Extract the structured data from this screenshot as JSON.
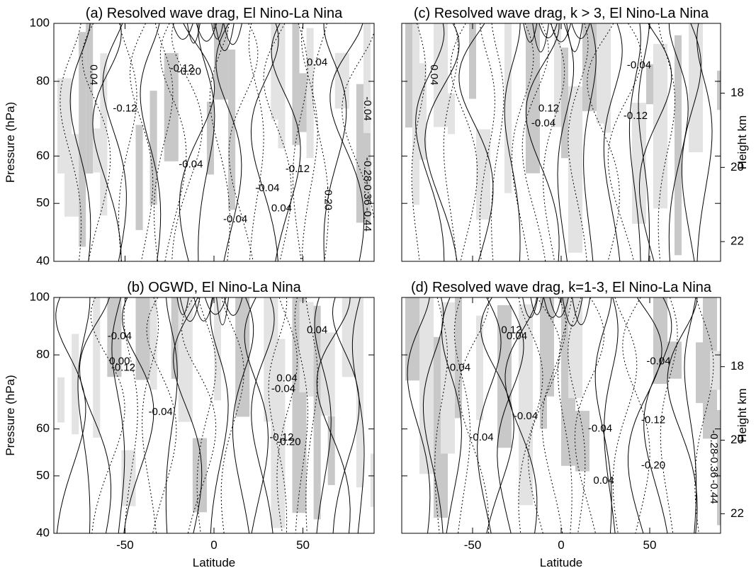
{
  "chart_data": [
    {
      "type": "heatmap",
      "title": "(a) Resolved wave drag, El Nino-La Nina",
      "ylabel": "Pressure (hPa)",
      "xlabel": "",
      "xlim": [
        -90,
        90
      ],
      "ylim": [
        100,
        40
      ],
      "yscale": "log",
      "yticks": [
        40,
        50,
        60,
        80,
        100
      ],
      "xticks": [],
      "contour_labels": [
        {
          "text": "0.04",
          "lat": -68,
          "p": 82
        },
        {
          "text": "-0.12",
          "lat": -50,
          "p": 72
        },
        {
          "text": "-0.04",
          "lat": -13,
          "p": 58
        },
        {
          "text": "-0.20",
          "lat": -14,
          "p": 83
        },
        {
          "text": "-0.12",
          "lat": -18,
          "p": 84
        },
        {
          "text": "-0.04",
          "lat": 12,
          "p": 47
        },
        {
          "text": "-0.04",
          "lat": 30,
          "p": 53
        },
        {
          "text": "0.04",
          "lat": 38,
          "p": 49
        },
        {
          "text": "-0.12",
          "lat": 47,
          "p": 57
        },
        {
          "text": "-0.20",
          "lat": 64,
          "p": 51
        },
        {
          "text": "0.04",
          "lat": 58,
          "p": 86
        },
        {
          "text": "-0.44",
          "lat": 86,
          "p": 47
        },
        {
          "text": "-0.36",
          "lat": 86,
          "p": 52
        },
        {
          "text": "-0.28",
          "lat": 86,
          "p": 57
        },
        {
          "text": "-0.04",
          "lat": 86,
          "p": 72
        }
      ]
    },
    {
      "type": "heatmap",
      "title": "(b) OGWD, El Nino-La Nina",
      "ylabel": "Pressure (hPa)",
      "xlabel": "Latitude",
      "xlim": [
        -90,
        90
      ],
      "ylim": [
        100,
        40
      ],
      "yscale": "log",
      "yticks": [
        40,
        50,
        60,
        80,
        100
      ],
      "xticks": [
        -50,
        0,
        50
      ],
      "contour_labels": [
        {
          "text": "-0.04",
          "lat": -30,
          "p": 64
        },
        {
          "text": "-0.12",
          "lat": 38,
          "p": 58
        },
        {
          "text": "-0.20",
          "lat": 42,
          "p": 57
        },
        {
          "text": "-0.04",
          "lat": 39,
          "p": 70
        },
        {
          "text": "0.04",
          "lat": 41,
          "p": 73
        },
        {
          "text": "-0.12",
          "lat": -51,
          "p": 76
        },
        {
          "text": "0.00",
          "lat": -53,
          "p": 78
        },
        {
          "text": "-0.04",
          "lat": -53,
          "p": 86
        },
        {
          "text": "0.04",
          "lat": 58,
          "p": 88
        }
      ]
    },
    {
      "type": "heatmap",
      "title": "(c) Resolved wave drag, k > 3, El Nino-La Nina",
      "ylabel": "Height km",
      "xlabel": "",
      "xlim": [
        -90,
        90
      ],
      "ylim": [
        100,
        40
      ],
      "yscale": "log",
      "yticks": [
        40,
        50,
        60,
        80,
        100
      ],
      "right_axis_ticks": [
        22,
        20,
        18
      ],
      "xticks": [],
      "contour_labels": [
        {
          "text": "0.04",
          "lat": -72,
          "p": 82
        },
        {
          "text": "-0.04",
          "lat": -10,
          "p": 68
        },
        {
          "text": "0.12",
          "lat": -7,
          "p": 72
        },
        {
          "text": "-0.12",
          "lat": 42,
          "p": 70
        },
        {
          "text": "-0.04",
          "lat": 44,
          "p": 85
        }
      ]
    },
    {
      "type": "heatmap",
      "title": "(d) Resolved wave drag, k=1-3, El Nino-La Nina",
      "ylabel": "Height km",
      "xlabel": "Latitude",
      "xlim": [
        -90,
        90
      ],
      "ylim": [
        100,
        40
      ],
      "yscale": "log",
      "yticks": [
        40,
        50,
        60,
        80,
        100
      ],
      "right_axis_ticks": [
        22,
        20,
        18
      ],
      "xticks": [
        -50,
        0,
        50
      ],
      "contour_labels": [
        {
          "text": "-0.04",
          "lat": -45,
          "p": 58
        },
        {
          "text": "-0.04",
          "lat": -58,
          "p": 76
        },
        {
          "text": "-0.04",
          "lat": -20,
          "p": 63
        },
        {
          "text": "0.04",
          "lat": -25,
          "p": 86
        },
        {
          "text": "0.12",
          "lat": -28,
          "p": 88
        },
        {
          "text": "0.04",
          "lat": 24,
          "p": 49
        },
        {
          "text": "-0.04",
          "lat": 22,
          "p": 60
        },
        {
          "text": "-0.20",
          "lat": 52,
          "p": 52
        },
        {
          "text": "-0.12",
          "lat": 52,
          "p": 62
        },
        {
          "text": "-0.04",
          "lat": 55,
          "p": 78
        },
        {
          "text": "-0.44",
          "lat": 86,
          "p": 47
        },
        {
          "text": "-0.36",
          "lat": 86,
          "p": 52
        },
        {
          "text": "-0.28",
          "lat": 86,
          "p": 57
        }
      ]
    }
  ]
}
